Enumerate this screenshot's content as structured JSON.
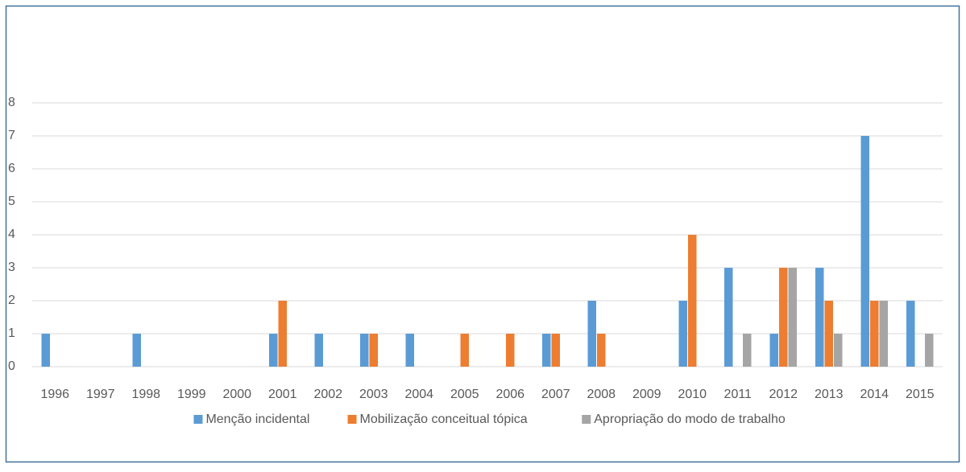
{
  "chart_data": {
    "type": "bar",
    "categories": [
      "1996",
      "1997",
      "1998",
      "1999",
      "2000",
      "2001",
      "2002",
      "2003",
      "2004",
      "2005",
      "2006",
      "2007",
      "2008",
      "2009",
      "2010",
      "2011",
      "2012",
      "2013",
      "2014",
      "2015"
    ],
    "series": [
      {
        "name": "Menção incidental",
        "color": "#5b9bd5",
        "values": [
          1,
          0,
          1,
          0,
          0,
          1,
          1,
          1,
          1,
          0,
          0,
          1,
          2,
          0,
          2,
          3,
          1,
          3,
          7,
          2
        ]
      },
      {
        "name": "Mobilização conceitual tópica",
        "color": "#ed7d31",
        "values": [
          0,
          0,
          0,
          0,
          0,
          2,
          0,
          1,
          0,
          1,
          1,
          1,
          1,
          0,
          4,
          0,
          3,
          2,
          2,
          0
        ]
      },
      {
        "name": "Apropriação do modo de trabalho",
        "color": "#a5a5a5",
        "values": [
          0,
          0,
          0,
          0,
          0,
          0,
          0,
          0,
          0,
          0,
          0,
          0,
          0,
          0,
          0,
          1,
          3,
          1,
          2,
          1
        ]
      }
    ],
    "ylim": [
      0,
      8
    ],
    "yticks": [
      0,
      1,
      2,
      3,
      4,
      5,
      6,
      7,
      8
    ],
    "grid": true,
    "legend": "bottom"
  }
}
